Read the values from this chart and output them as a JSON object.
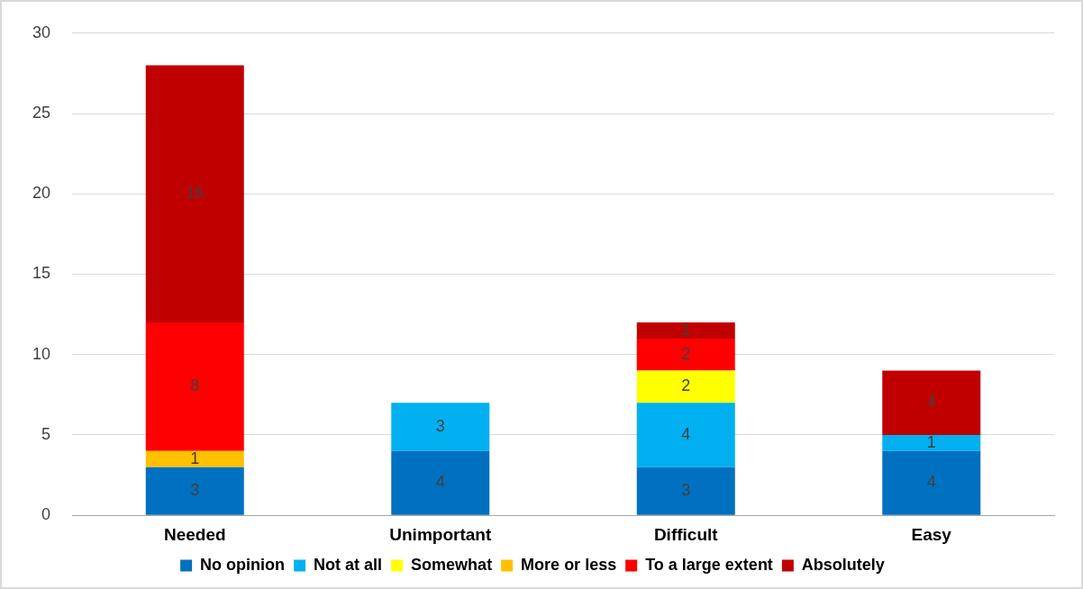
{
  "chart_data": {
    "type": "bar",
    "stacked": true,
    "categories": [
      "Needed",
      "Unimportant",
      "Difficult",
      "Easy"
    ],
    "series": [
      {
        "name": "No opinion",
        "color": "#0070c0",
        "values": [
          3,
          4,
          3,
          4
        ]
      },
      {
        "name": "Not at all",
        "color": "#00b0f0",
        "values": [
          null,
          3,
          4,
          1
        ]
      },
      {
        "name": "Somewhat",
        "color": "#ffff00",
        "values": [
          null,
          null,
          2,
          null
        ]
      },
      {
        "name": "More or less",
        "color": "#ffc000",
        "values": [
          1,
          null,
          null,
          null
        ]
      },
      {
        "name": "To a large extent",
        "color": "#ff0000",
        "values": [
          8,
          null,
          2,
          null
        ]
      },
      {
        "name": "Absolutely",
        "color": "#c00000",
        "values": [
          16,
          null,
          1,
          4
        ]
      }
    ],
    "ylim": [
      0,
      30
    ],
    "yticks": [
      0,
      5,
      10,
      15,
      20,
      25,
      30
    ],
    "grid": "y",
    "legend": "bottom",
    "data_labels": true
  }
}
